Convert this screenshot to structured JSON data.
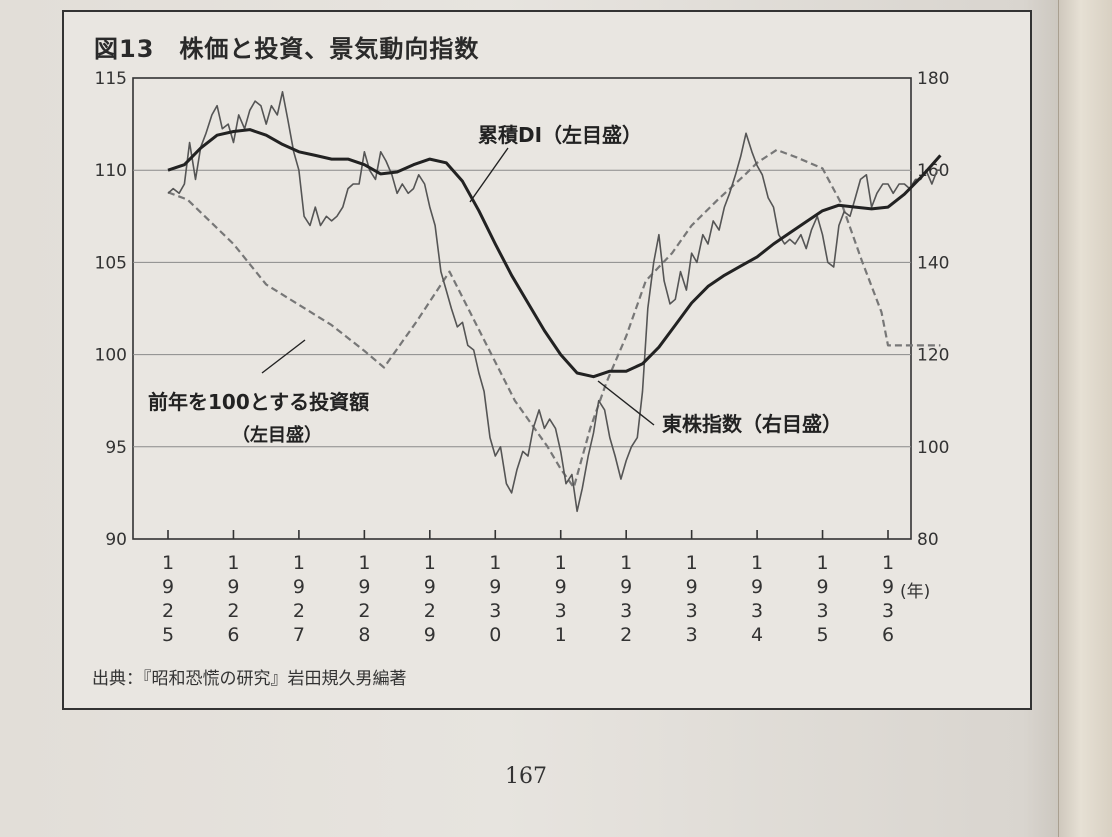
{
  "figure": {
    "title": "図13　株価と投資、景気動向指数",
    "source": "出典：『昭和恐慌の研究』岩田規久男編著",
    "page_number": "167"
  },
  "colors": {
    "paper": "#e9e6e1",
    "ink": "#222222",
    "grid": "#8a8a8a",
    "stock_line": "#555555",
    "investment_line": "#777777"
  },
  "chart_data": {
    "type": "line",
    "x_unit_label": "(年)",
    "x_tick_labels": [
      [
        "1",
        "9",
        "2",
        "5"
      ],
      [
        "1",
        "9",
        "2",
        "6"
      ],
      [
        "1",
        "9",
        "2",
        "7"
      ],
      [
        "1",
        "9",
        "2",
        "8"
      ],
      [
        "1",
        "9",
        "2",
        "9"
      ],
      [
        "1",
        "9",
        "3",
        "0"
      ],
      [
        "1",
        "9",
        "3",
        "1"
      ],
      [
        "1",
        "9",
        "3",
        "2"
      ],
      [
        "1",
        "9",
        "3",
        "3"
      ],
      [
        "1",
        "9",
        "3",
        "4"
      ],
      [
        "1",
        "9",
        "3",
        "5"
      ],
      [
        "1",
        "9",
        "3",
        "6"
      ]
    ],
    "x_tick_years": [
      1925,
      1926,
      1927,
      1928,
      1929,
      1930,
      1931,
      1932,
      1933,
      1934,
      1935,
      1936
    ],
    "xlim": [
      1925,
      1936.8
    ],
    "y_left": {
      "ylim": [
        90,
        115
      ],
      "ticks": [
        "90",
        "95",
        "100",
        "105",
        "110",
        "115"
      ]
    },
    "y_right": {
      "ylim": [
        80,
        180
      ],
      "ticks": [
        "80",
        "100",
        "120",
        "140",
        "160",
        "180"
      ]
    },
    "grid": {
      "horizontal": true,
      "vertical": false
    },
    "annotations": {
      "di": "累積DI（左目盛）",
      "investment": "前年を100とする投資額",
      "investment_axis": "（左目盛）",
      "stock": "東株指数（右目盛）"
    },
    "series": [
      {
        "key": "di",
        "axis": "left",
        "style": "solid-thick",
        "points": [
          [
            1925.0,
            110.0
          ],
          [
            1925.25,
            110.3
          ],
          [
            1925.5,
            111.2
          ],
          [
            1925.75,
            111.9
          ],
          [
            1926.0,
            112.1
          ],
          [
            1926.25,
            112.2
          ],
          [
            1926.5,
            111.9
          ],
          [
            1926.75,
            111.4
          ],
          [
            1927.0,
            111.0
          ],
          [
            1927.25,
            110.8
          ],
          [
            1927.5,
            110.6
          ],
          [
            1927.75,
            110.6
          ],
          [
            1928.0,
            110.3
          ],
          [
            1928.25,
            109.8
          ],
          [
            1928.5,
            109.9
          ],
          [
            1928.75,
            110.3
          ],
          [
            1929.0,
            110.6
          ],
          [
            1929.25,
            110.4
          ],
          [
            1929.5,
            109.4
          ],
          [
            1929.75,
            107.8
          ],
          [
            1930.0,
            106.0
          ],
          [
            1930.25,
            104.3
          ],
          [
            1930.5,
            102.8
          ],
          [
            1930.75,
            101.3
          ],
          [
            1931.0,
            100.0
          ],
          [
            1931.25,
            99.0
          ],
          [
            1931.5,
            98.8
          ],
          [
            1931.75,
            99.1
          ],
          [
            1932.0,
            99.1
          ],
          [
            1932.25,
            99.5
          ],
          [
            1932.5,
            100.4
          ],
          [
            1932.75,
            101.6
          ],
          [
            1933.0,
            102.8
          ],
          [
            1933.25,
            103.7
          ],
          [
            1933.5,
            104.3
          ],
          [
            1933.75,
            104.8
          ],
          [
            1934.0,
            105.3
          ],
          [
            1934.25,
            106.0
          ],
          [
            1934.5,
            106.6
          ],
          [
            1934.75,
            107.2
          ],
          [
            1935.0,
            107.8
          ],
          [
            1935.25,
            108.1
          ],
          [
            1935.5,
            108.0
          ],
          [
            1935.75,
            107.9
          ],
          [
            1936.0,
            108.0
          ],
          [
            1936.25,
            108.7
          ],
          [
            1936.5,
            109.6
          ],
          [
            1936.8,
            110.8
          ]
        ]
      },
      {
        "key": "investment",
        "axis": "left",
        "style": "dashed",
        "points": [
          [
            1925.0,
            108.8
          ],
          [
            1925.3,
            108.4
          ],
          [
            1926.0,
            106.0
          ],
          [
            1926.5,
            103.8
          ],
          [
            1927.0,
            102.7
          ],
          [
            1927.5,
            101.6
          ],
          [
            1928.0,
            100.2
          ],
          [
            1928.3,
            99.3
          ],
          [
            1928.8,
            101.8
          ],
          [
            1929.3,
            104.5
          ],
          [
            1929.8,
            101.0
          ],
          [
            1930.3,
            97.5
          ],
          [
            1930.8,
            95.0
          ],
          [
            1931.0,
            93.8
          ],
          [
            1931.2,
            92.8
          ],
          [
            1931.45,
            96.0
          ],
          [
            1931.7,
            98.5
          ],
          [
            1932.0,
            101.0
          ],
          [
            1932.3,
            104.0
          ],
          [
            1932.7,
            105.5
          ],
          [
            1933.0,
            107.0
          ],
          [
            1933.4,
            108.4
          ],
          [
            1933.8,
            109.7
          ],
          [
            1934.0,
            110.4
          ],
          [
            1934.3,
            111.1
          ],
          [
            1934.6,
            110.7
          ],
          [
            1935.0,
            110.1
          ],
          [
            1935.3,
            108.1
          ],
          [
            1935.6,
            105.1
          ],
          [
            1935.9,
            102.3
          ],
          [
            1936.0,
            100.5
          ],
          [
            1936.5,
            100.5
          ],
          [
            1936.8,
            100.5
          ]
        ]
      },
      {
        "key": "stock",
        "axis": "right",
        "style": "solid-thin",
        "points": [
          [
            1925.0,
            155
          ],
          [
            1925.08,
            156
          ],
          [
            1925.17,
            155
          ],
          [
            1925.25,
            157
          ],
          [
            1925.33,
            166
          ],
          [
            1925.42,
            158
          ],
          [
            1925.5,
            165
          ],
          [
            1925.58,
            168
          ],
          [
            1925.67,
            172
          ],
          [
            1925.75,
            174
          ],
          [
            1925.83,
            169
          ],
          [
            1925.92,
            170
          ],
          [
            1926.0,
            166
          ],
          [
            1926.08,
            172
          ],
          [
            1926.17,
            169
          ],
          [
            1926.25,
            173
          ],
          [
            1926.33,
            175
          ],
          [
            1926.42,
            174
          ],
          [
            1926.5,
            170
          ],
          [
            1926.58,
            174
          ],
          [
            1926.67,
            172
          ],
          [
            1926.75,
            177
          ],
          [
            1926.83,
            171
          ],
          [
            1926.92,
            164
          ],
          [
            1927.0,
            160
          ],
          [
            1927.08,
            150
          ],
          [
            1927.17,
            148
          ],
          [
            1927.25,
            152
          ],
          [
            1927.33,
            148
          ],
          [
            1927.42,
            150
          ],
          [
            1927.5,
            149
          ],
          [
            1927.58,
            150
          ],
          [
            1927.67,
            152
          ],
          [
            1927.75,
            156
          ],
          [
            1927.83,
            157
          ],
          [
            1927.92,
            157
          ],
          [
            1928.0,
            164
          ],
          [
            1928.08,
            160
          ],
          [
            1928.17,
            158
          ],
          [
            1928.25,
            164
          ],
          [
            1928.33,
            162
          ],
          [
            1928.42,
            159
          ],
          [
            1928.5,
            155
          ],
          [
            1928.58,
            157
          ],
          [
            1928.67,
            155
          ],
          [
            1928.75,
            156
          ],
          [
            1928.83,
            159
          ],
          [
            1928.92,
            157
          ],
          [
            1929.0,
            152
          ],
          [
            1929.08,
            148
          ],
          [
            1929.17,
            138
          ],
          [
            1929.25,
            134
          ],
          [
            1929.33,
            130
          ],
          [
            1929.42,
            126
          ],
          [
            1929.5,
            127
          ],
          [
            1929.58,
            122
          ],
          [
            1929.67,
            121
          ],
          [
            1929.75,
            116
          ],
          [
            1929.83,
            112
          ],
          [
            1929.92,
            102
          ],
          [
            1930.0,
            98
          ],
          [
            1930.08,
            100
          ],
          [
            1930.17,
            92
          ],
          [
            1930.25,
            90
          ],
          [
            1930.33,
            95
          ],
          [
            1930.42,
            99
          ],
          [
            1930.5,
            98
          ],
          [
            1930.58,
            104
          ],
          [
            1930.67,
            108
          ],
          [
            1930.75,
            104
          ],
          [
            1930.83,
            106
          ],
          [
            1930.92,
            104
          ],
          [
            1931.0,
            99
          ],
          [
            1931.08,
            92
          ],
          [
            1931.17,
            94
          ],
          [
            1931.25,
            86
          ],
          [
            1931.33,
            91
          ],
          [
            1931.42,
            98
          ],
          [
            1931.5,
            103
          ],
          [
            1931.58,
            110
          ],
          [
            1931.67,
            108
          ],
          [
            1931.75,
            102
          ],
          [
            1931.83,
            98
          ],
          [
            1931.92,
            93
          ],
          [
            1932.0,
            97
          ],
          [
            1932.08,
            100
          ],
          [
            1932.17,
            102
          ],
          [
            1932.25,
            112
          ],
          [
            1932.33,
            130
          ],
          [
            1932.42,
            140
          ],
          [
            1932.5,
            146
          ],
          [
            1932.58,
            136
          ],
          [
            1932.67,
            131
          ],
          [
            1932.75,
            132
          ],
          [
            1932.83,
            138
          ],
          [
            1932.92,
            134
          ],
          [
            1933.0,
            142
          ],
          [
            1933.08,
            140
          ],
          [
            1933.17,
            146
          ],
          [
            1933.25,
            144
          ],
          [
            1933.33,
            149
          ],
          [
            1933.42,
            147
          ],
          [
            1933.5,
            152
          ],
          [
            1933.58,
            155
          ],
          [
            1933.67,
            159
          ],
          [
            1933.75,
            163
          ],
          [
            1933.83,
            168
          ],
          [
            1933.92,
            164
          ],
          [
            1934.0,
            161
          ],
          [
            1934.08,
            159
          ],
          [
            1934.17,
            154
          ],
          [
            1934.25,
            152
          ],
          [
            1934.33,
            146
          ],
          [
            1934.42,
            144
          ],
          [
            1934.5,
            145
          ],
          [
            1934.58,
            144
          ],
          [
            1934.67,
            146
          ],
          [
            1934.75,
            143
          ],
          [
            1934.83,
            147
          ],
          [
            1934.92,
            150
          ],
          [
            1935.0,
            146
          ],
          [
            1935.08,
            140
          ],
          [
            1935.17,
            139
          ],
          [
            1935.25,
            148
          ],
          [
            1935.33,
            151
          ],
          [
            1935.42,
            150
          ],
          [
            1935.5,
            154
          ],
          [
            1935.58,
            158
          ],
          [
            1935.67,
            159
          ],
          [
            1935.75,
            152
          ],
          [
            1935.83,
            155
          ],
          [
            1935.92,
            157
          ],
          [
            1936.0,
            157
          ],
          [
            1936.08,
            155
          ],
          [
            1936.17,
            157
          ],
          [
            1936.25,
            157
          ],
          [
            1936.33,
            156
          ],
          [
            1936.42,
            158
          ],
          [
            1936.5,
            158
          ],
          [
            1936.58,
            160
          ],
          [
            1936.67,
            157
          ],
          [
            1936.75,
            160
          ],
          [
            1936.8,
            160
          ]
        ]
      }
    ]
  }
}
